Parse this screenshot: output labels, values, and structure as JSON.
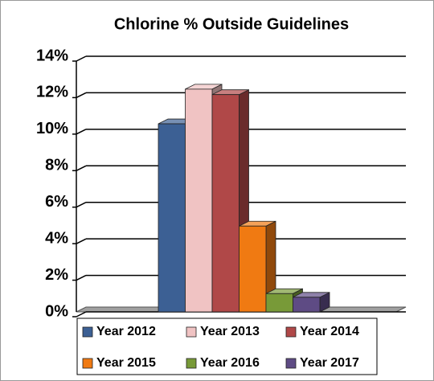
{
  "chart_data": {
    "type": "bar3d",
    "title": "Chlorine % Outside Guidelines",
    "categories": [
      null
    ],
    "series": [
      {
        "name": "Year 2012",
        "color": "#3c6094",
        "values": [
          10.3
        ]
      },
      {
        "name": "Year 2013",
        "color": "#f0c3c3",
        "values": [
          12.2
        ]
      },
      {
        "name": "Year 2014",
        "color": "#b04848",
        "values": [
          11.9
        ]
      },
      {
        "name": "Year 2015",
        "color": "#f07a12",
        "values": [
          4.7
        ]
      },
      {
        "name": "Year 2016",
        "color": "#789a38",
        "values": [
          1.0
        ]
      },
      {
        "name": "Year 2017",
        "color": "#5e4b84",
        "values": [
          0.8
        ]
      }
    ],
    "ylim": [
      0,
      14
    ],
    "yticks": [
      {
        "value": 0,
        "label": "0%"
      },
      {
        "value": 2,
        "label": "2%"
      },
      {
        "value": 4,
        "label": "4%"
      },
      {
        "value": 6,
        "label": "6%"
      },
      {
        "value": 8,
        "label": "8%"
      },
      {
        "value": 10,
        "label": "10%"
      },
      {
        "value": 12,
        "label": "12%"
      },
      {
        "value": 14,
        "label": "14%"
      }
    ],
    "grid": true,
    "legend": "bottom"
  }
}
